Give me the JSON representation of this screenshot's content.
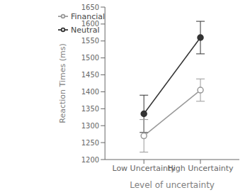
{
  "chart_data": {
    "type": "line",
    "categories": [
      "Low Uncertainty",
      "High Uncertainty"
    ],
    "xlabel": "Level of uncertainty",
    "ylabel": "Reaction Times (ms)",
    "ylim": [
      1200,
      1650
    ],
    "yticks": [
      1200,
      1250,
      1300,
      1350,
      1400,
      1450,
      1500,
      1550,
      1600,
      1650
    ],
    "series": [
      {
        "name": "Neutral",
        "color": "#333333",
        "marker": "circle",
        "values": [
          1335,
          1560
        ],
        "errors": [
          55,
          48
        ]
      },
      {
        "name": "Financial",
        "color": "#999999",
        "marker": "open_circle",
        "values": [
          1270,
          1405
        ],
        "errors": [
          48,
          33
        ]
      }
    ],
    "legend": "upper left",
    "grid": false
  }
}
